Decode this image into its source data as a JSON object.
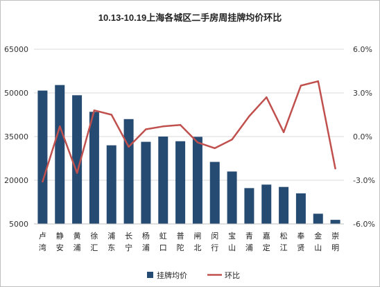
{
  "chart_data": {
    "type": "bar+line",
    "title": "10.13-10.19上海各城区二手房周挂牌均价环比",
    "categories": [
      [
        "卢",
        "湾"
      ],
      [
        "静",
        "安"
      ],
      [
        "黄",
        "浦"
      ],
      [
        "徐",
        "汇"
      ],
      [
        "浦",
        "东"
      ],
      [
        "长",
        "宁"
      ],
      [
        "杨",
        "浦"
      ],
      [
        "虹",
        "口"
      ],
      [
        "普",
        "陀"
      ],
      [
        "闸",
        "北"
      ],
      [
        "闵",
        "行"
      ],
      [
        "宝",
        "山"
      ],
      [
        "青",
        "浦"
      ],
      [
        "嘉",
        "定"
      ],
      [
        "松",
        "江"
      ],
      [
        "奉",
        "贤"
      ],
      [
        "金",
        "山"
      ],
      [
        "崇",
        "明"
      ]
    ],
    "series": [
      {
        "name": "挂牌均价",
        "type": "bar",
        "axis": "left",
        "color": "#264b73",
        "values": [
          50800,
          52700,
          49200,
          43500,
          32000,
          41000,
          33200,
          35000,
          33400,
          34900,
          26300,
          23000,
          17300,
          18500,
          17700,
          15500,
          8500,
          6400
        ]
      },
      {
        "name": "环比",
        "type": "line",
        "axis": "right",
        "color": "#c0504d",
        "values": [
          -3.1,
          0.7,
          -2.5,
          1.8,
          1.5,
          -0.7,
          0.5,
          0.7,
          0.8,
          -0.4,
          -0.8,
          -0.2,
          1.4,
          2.7,
          0.3,
          3.5,
          3.8,
          -2.2
        ]
      }
    ],
    "y_left": {
      "min": 5000,
      "max": 65000,
      "ticks": [
        "65000",
        "50000",
        "35000",
        "20000",
        "5000"
      ]
    },
    "y_right": {
      "min": -6.0,
      "max": 6.0,
      "ticks": [
        "6.0%",
        "3.0%",
        "0.0%",
        "-3.0%",
        "-6.0%"
      ]
    },
    "grid": true,
    "legend": {
      "position": "bottom"
    }
  }
}
